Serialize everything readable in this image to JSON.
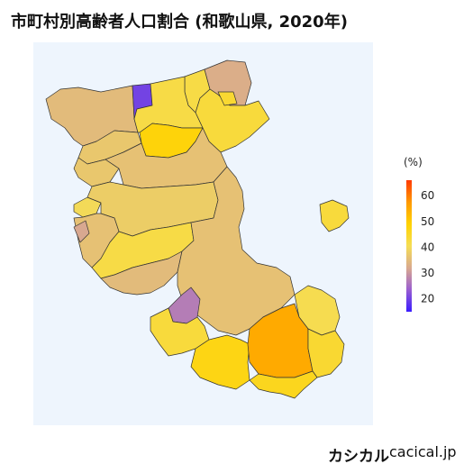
{
  "title": "市町村別高齢者人口割合 (和歌山県, 2020年)",
  "legend": {
    "title": "(%)",
    "min": 15,
    "max": 66,
    "ticks": [
      20,
      30,
      40,
      50,
      60
    ],
    "colors": [
      "#3a1cff",
      "#9b5fd0",
      "#d8a890",
      "#f5dd55",
      "#ffd200",
      "#ff9a00",
      "#ff3a00"
    ]
  },
  "map": {
    "background": "#eef5fd",
    "outline": "#333333",
    "regions": [
      {
        "id": "r01",
        "value": 35
      },
      {
        "id": "r02",
        "value": 20
      },
      {
        "id": "r03",
        "value": 42
      },
      {
        "id": "r04",
        "value": 33
      },
      {
        "id": "r05",
        "value": 43
      },
      {
        "id": "r06",
        "value": 44
      },
      {
        "id": "r07",
        "value": 42
      },
      {
        "id": "r08",
        "value": 48
      },
      {
        "id": "r09",
        "value": 37
      },
      {
        "id": "r10",
        "value": 37
      },
      {
        "id": "r11",
        "value": 36
      },
      {
        "id": "r12",
        "value": 40
      },
      {
        "id": "r13",
        "value": 38
      },
      {
        "id": "r14",
        "value": 36
      },
      {
        "id": "r15",
        "value": 32
      },
      {
        "id": "r16",
        "value": 42
      },
      {
        "id": "r17",
        "value": 35
      },
      {
        "id": "r18",
        "value": 36
      },
      {
        "id": "r19",
        "value": 27
      },
      {
        "id": "r20",
        "value": 43
      },
      {
        "id": "r21",
        "value": 41
      },
      {
        "id": "r22",
        "value": 47
      },
      {
        "id": "r23",
        "value": 55
      },
      {
        "id": "r24",
        "value": 44
      },
      {
        "id": "r25",
        "value": 46
      },
      {
        "id": "r26",
        "value": 43
      }
    ]
  },
  "footer": {
    "brand": "カシカル",
    "site": "cacical.jp"
  }
}
